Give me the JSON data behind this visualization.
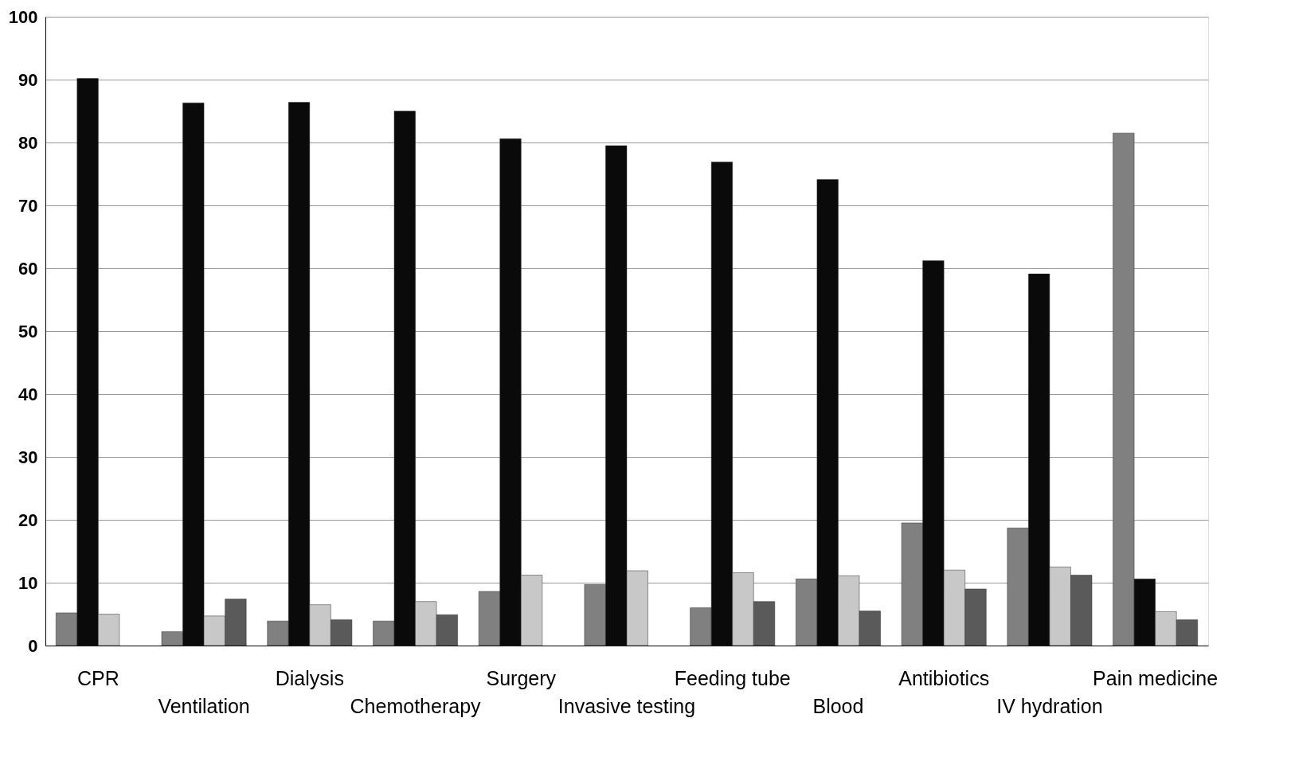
{
  "chart_data": {
    "type": "bar",
    "categories": [
      "CPR",
      "Ventilation",
      "Dialysis",
      "Chemotherapy",
      "Surgery",
      "Invasive testing",
      "Feeding tube",
      "Blood",
      "Antibiotics",
      "IV hydration",
      "Pain medicine"
    ],
    "series": [
      {
        "color": "#808080",
        "values": [
          5.2,
          2.2,
          3.9,
          3.9,
          8.6,
          9.7,
          6,
          10.6,
          19.5,
          18.7,
          81.5
        ]
      },
      {
        "color": "#0a0a0a",
        "values": [
          90.2,
          86.3,
          86.4,
          85,
          80.6,
          79.5,
          76.9,
          74.1,
          61.2,
          59.1,
          10.6
        ]
      },
      {
        "color": "#c8c8c8",
        "values": [
          5,
          4.7,
          6.5,
          7,
          11.2,
          11.9,
          11.6,
          11.1,
          12,
          12.5,
          5.4
        ]
      },
      {
        "color": "#5a5a5a",
        "values": [
          null,
          7.4,
          4.1,
          4.9,
          null,
          null,
          7,
          5.5,
          9,
          11.2,
          4.1
        ]
      }
    ],
    "ylim": [
      0,
      100
    ],
    "yticks": [
      0,
      10,
      20,
      30,
      40,
      50,
      60,
      70,
      80,
      90,
      100
    ],
    "grid": "y",
    "legend": false
  }
}
